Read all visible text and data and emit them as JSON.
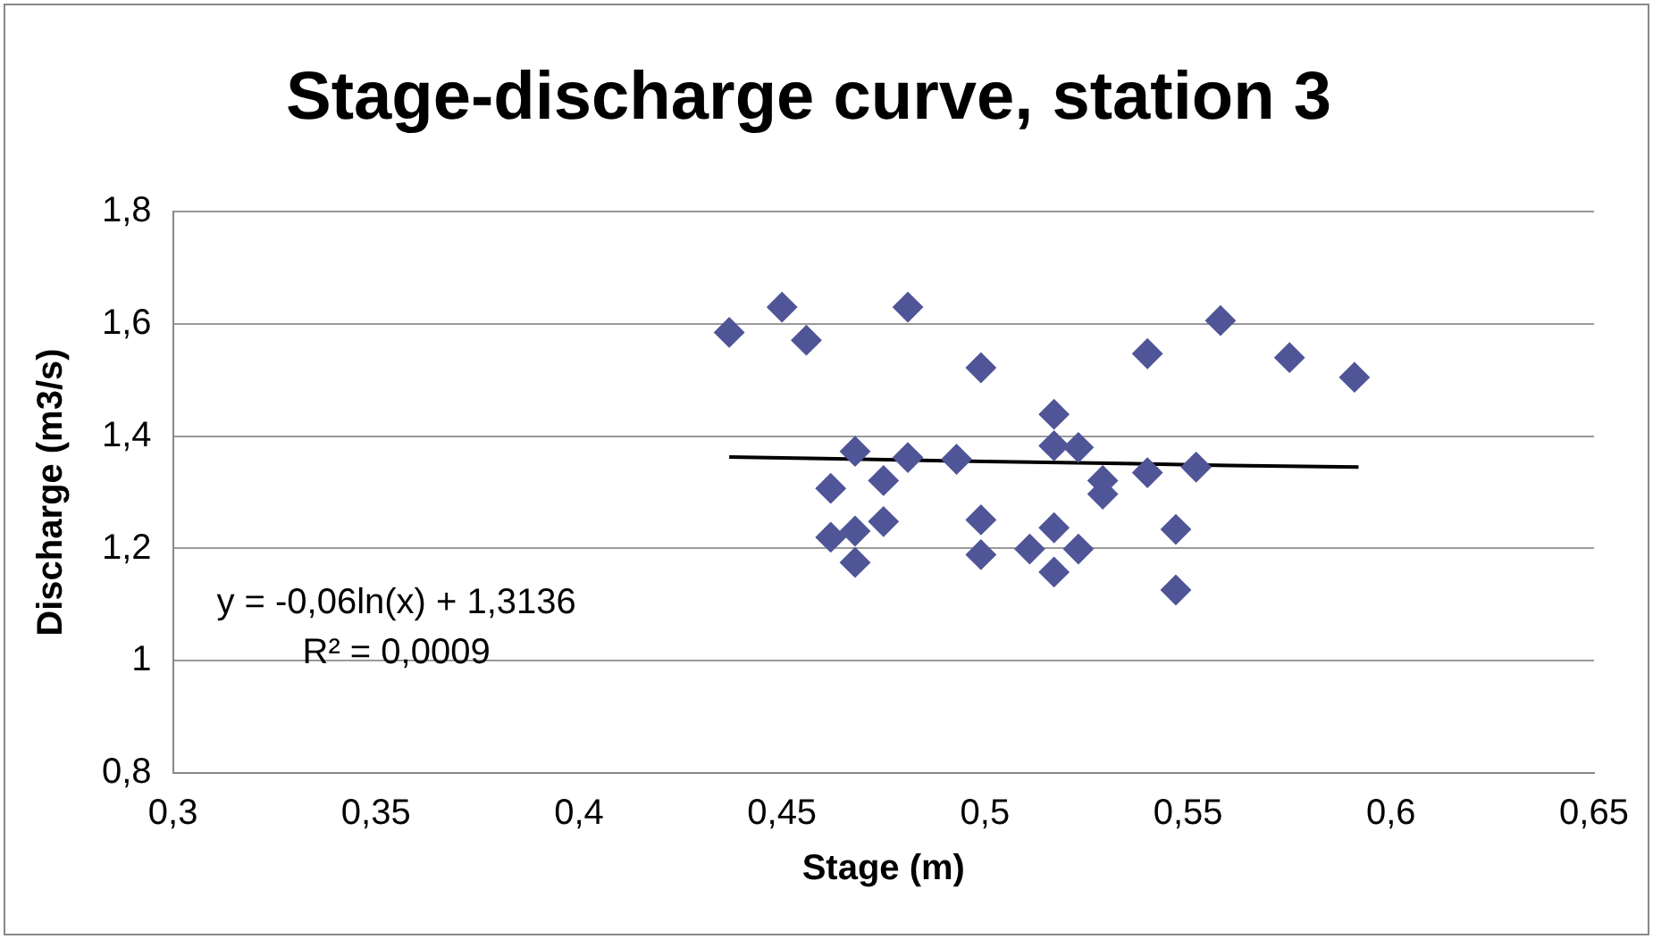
{
  "chart_data": {
    "type": "scatter",
    "title": "Stage-discharge curve, station 3",
    "xlabel": "Stage (m)",
    "ylabel": "Discharge (m3/s)",
    "xlim": [
      0.3,
      0.65
    ],
    "ylim": [
      0.8,
      1.8
    ],
    "xticks": [
      {
        "value": 0.3,
        "label": "0,3"
      },
      {
        "value": 0.35,
        "label": "0,35"
      },
      {
        "value": 0.4,
        "label": "0,4"
      },
      {
        "value": 0.45,
        "label": "0,45"
      },
      {
        "value": 0.5,
        "label": "0,5"
      },
      {
        "value": 0.55,
        "label": "0,55"
      },
      {
        "value": 0.6,
        "label": "0,6"
      },
      {
        "value": 0.65,
        "label": "0,65"
      }
    ],
    "yticks": [
      {
        "value": 0.8,
        "label": "0,8"
      },
      1,
      {
        "value": 1.2,
        "label": "1,2"
      },
      {
        "value": 1.4,
        "label": "1,4"
      },
      {
        "value": 1.6,
        "label": "1,6"
      },
      {
        "value": 1.8,
        "label": "1,8"
      }
    ],
    "grid": "y",
    "legend": false,
    "marker": "diamond",
    "annotations": [
      "y = -0,06ln(x) + 1,3136",
      "R² = 0,0009"
    ],
    "series": [
      {
        "color": "#4f5597",
        "x": [
          0.437,
          0.45,
          0.456,
          0.481,
          0.499,
          0.468,
          0.481,
          0.493,
          0.462,
          0.475,
          0.475,
          0.462,
          0.468,
          0.468,
          0.499,
          0.499,
          0.511,
          0.517,
          0.517,
          0.523,
          0.529,
          0.529,
          0.54,
          0.552,
          0.54,
          0.558,
          0.575,
          0.591,
          0.517,
          0.523,
          0.517,
          0.547,
          0.547
        ],
        "values": [
          1.585,
          1.63,
          1.571,
          1.63,
          1.522,
          1.373,
          1.362,
          1.359,
          1.307,
          1.321,
          1.248,
          1.22,
          1.231,
          1.175,
          1.251,
          1.189,
          1.199,
          1.439,
          1.383,
          1.38,
          1.321,
          1.297,
          1.335,
          1.345,
          1.547,
          1.606,
          1.54,
          1.505,
          1.237,
          1.199,
          1.158,
          1.234,
          1.126
        ]
      },
      {
        "type": "line",
        "color": "#000000",
        "marker": "none",
        "x": [
          0.437,
          0.47,
          0.5,
          0.53,
          0.56,
          0.592
        ],
        "values": [
          1.363,
          1.359,
          1.355,
          1.352,
          1.348,
          1.345
        ]
      }
    ]
  }
}
